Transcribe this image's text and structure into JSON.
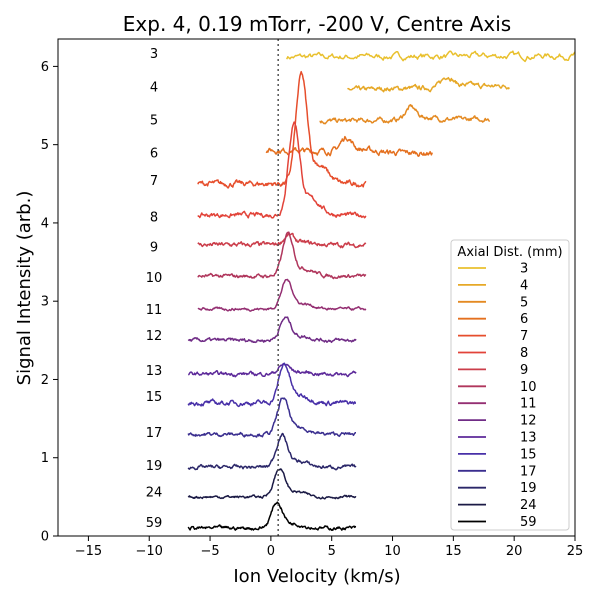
{
  "chart_data": {
    "type": "line",
    "title": "Exp. 4, 0.19 mTorr, -200 V, Centre Axis",
    "xlabel": "Ion Velocity (km/s)",
    "ylabel": "Signal Intensity (arb.)",
    "xlim": [
      -17.5,
      25
    ],
    "ylim": [
      0,
      6.35
    ],
    "xticks": [
      -15,
      -10,
      -5,
      0,
      5,
      10,
      15,
      20,
      25
    ],
    "yticks": [
      0,
      1,
      2,
      3,
      4,
      5,
      6
    ],
    "grid": false,
    "reference_line": {
      "x": 0.6,
      "style": "dotted"
    },
    "legend": {
      "title": "Axial Dist. (mm)",
      "placement": "lower-right"
    },
    "series": [
      {
        "name": "3",
        "color": "#e9c02e",
        "offset": 6.12,
        "x_range": [
          1.3,
          25
        ],
        "peak_x": null,
        "peak_height": 0,
        "drift": 0.0008,
        "noise": 0.035,
        "label_y": 6.17
      },
      {
        "name": "4",
        "color": "#e6a827",
        "offset": 5.7,
        "x_range": [
          6.3,
          19.6
        ],
        "peak_x": 14.5,
        "peak_height": 0.14,
        "drift": 0.004,
        "noise": 0.025,
        "label_y": 5.74
      },
      {
        "name": "5",
        "color": "#e48a22",
        "offset": 5.3,
        "x_range": [
          4.0,
          18.0
        ],
        "peak_x": 11.5,
        "peak_height": 0.16,
        "drift": 0.002,
        "noise": 0.025,
        "label_y": 5.32
      },
      {
        "name": "6",
        "color": "#e4701f",
        "offset": 4.93,
        "x_range": [
          -0.4,
          13.3
        ],
        "peak_x": 6.2,
        "peak_height": 0.18,
        "drift": -0.003,
        "noise": 0.03,
        "label_y": 4.9
      },
      {
        "name": "7",
        "color": "#e64e2c",
        "offset": 4.5,
        "x_range": [
          -6.0,
          7.8
        ],
        "peak_x": 2.5,
        "peak_height": 1.35,
        "drift": 0.0,
        "noise": 0.03,
        "label_y": 4.55
      },
      {
        "name": "8",
        "color": "#e24339",
        "offset": 4.1,
        "x_range": [
          -6.0,
          7.8
        ],
        "peak_x": 1.9,
        "peak_height": 1.15,
        "drift": 0.0,
        "noise": 0.025,
        "label_y": 4.08
      },
      {
        "name": "9",
        "color": "#cb3d4a",
        "offset": 3.72,
        "x_range": [
          -6.0,
          7.8
        ],
        "peak_x": 1.5,
        "peak_height": 0.12,
        "drift": 0.0,
        "noise": 0.025,
        "label_y": 3.7
      },
      {
        "name": "10",
        "color": "#b0365c",
        "offset": 3.32,
        "x_range": [
          -6.0,
          7.8
        ],
        "peak_x": 1.4,
        "peak_height": 0.52,
        "drift": 0.0,
        "noise": 0.02,
        "label_y": 3.31
      },
      {
        "name": "11",
        "color": "#942f72",
        "offset": 2.9,
        "x_range": [
          -6.0,
          7.8
        ],
        "peak_x": 1.3,
        "peak_height": 0.36,
        "drift": 0.0,
        "noise": 0.015,
        "label_y": 2.9
      },
      {
        "name": "12",
        "color": "#702c86",
        "offset": 2.5,
        "x_range": [
          -6.8,
          7.0
        ],
        "peak_x": 1.2,
        "peak_height": 0.28,
        "drift": 0.0,
        "noise": 0.02,
        "label_y": 2.57
      },
      {
        "name": "13",
        "color": "#5d2a9a",
        "offset": 2.07,
        "x_range": [
          -6.8,
          7.0
        ],
        "peak_x": 1.1,
        "peak_height": 0.12,
        "drift": 0.0,
        "noise": 0.02,
        "label_y": 2.12
      },
      {
        "name": "15",
        "color": "#4830a8",
        "offset": 1.7,
        "x_range": [
          -6.8,
          7.0
        ],
        "peak_x": 1.1,
        "peak_height": 0.48,
        "drift": 0.0,
        "noise": 0.025,
        "label_y": 1.79
      },
      {
        "name": "17",
        "color": "#3a2e8f",
        "offset": 1.3,
        "x_range": [
          -6.8,
          7.0
        ],
        "peak_x": 1.0,
        "peak_height": 0.45,
        "drift": 0.0,
        "noise": 0.02,
        "label_y": 1.33
      },
      {
        "name": "19",
        "color": "#2b2769",
        "offset": 0.88,
        "x_range": [
          -6.8,
          7.0
        ],
        "peak_x": 0.9,
        "peak_height": 0.4,
        "drift": 0.0,
        "noise": 0.02,
        "label_y": 0.91
      },
      {
        "name": "24",
        "color": "#1b1a45",
        "offset": 0.5,
        "x_range": [
          -6.8,
          7.0
        ],
        "peak_x": 0.7,
        "peak_height": 0.35,
        "drift": 0.0,
        "noise": 0.015,
        "label_y": 0.57
      },
      {
        "name": "59",
        "color": "#000000",
        "offset": 0.1,
        "x_range": [
          -6.8,
          7.0
        ],
        "peak_x": 0.5,
        "peak_height": 0.32,
        "drift": 0.0,
        "noise": 0.02,
        "label_y": 0.18
      }
    ]
  }
}
